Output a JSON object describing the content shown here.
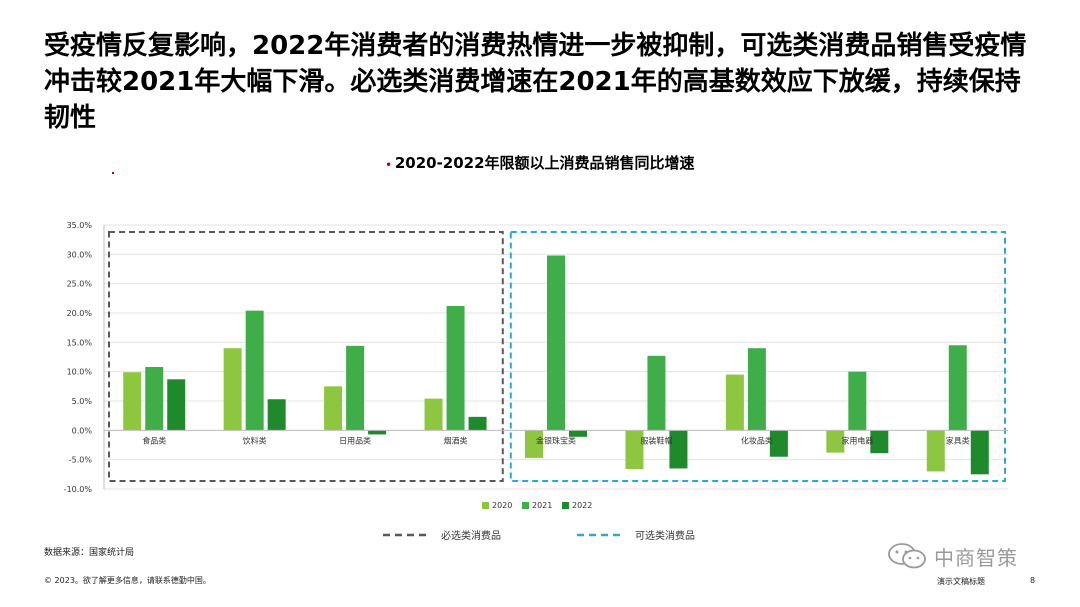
{
  "slide": {
    "title": "受疫情反复影响，2022年消费者的消费热情进一步被抑制，可选类消费品销售受疫情冲击较2021年大幅下滑。必选类消费增速在2021年的高基数效应下放缓，持续保持韧性",
    "source": "数据来源：国家统计局",
    "copyright": "© 2023。欲了解更多信息，请联系德勤中国。",
    "footer_title": "演示文稿标题",
    "page_number": "8",
    "watermark": "中商智策"
  },
  "chart_data": {
    "type": "bar",
    "title": "2020-2022年限额以上消费品销售同比增速",
    "categories": [
      "食品类",
      "饮料类",
      "日用品类",
      "烟酒类",
      "金银珠宝类",
      "服装鞋帽",
      "化妆品类",
      "家用电器",
      "家具类"
    ],
    "series": [
      {
        "name": "2020",
        "color": "#8dc63f",
        "values": [
          9.9,
          14.0,
          7.5,
          5.4,
          -4.7,
          -6.6,
          9.5,
          -3.8,
          -7.0
        ]
      },
      {
        "name": "2021",
        "color": "#3fae49",
        "values": [
          10.8,
          20.4,
          14.4,
          21.2,
          29.8,
          12.7,
          14.0,
          10.0,
          14.5
        ]
      },
      {
        "name": "2022",
        "color": "#1f8a2b",
        "values": [
          8.7,
          5.3,
          -0.7,
          2.3,
          -1.1,
          -6.5,
          -4.5,
          -3.9,
          -7.5
        ]
      }
    ],
    "yticks": [
      "35.0%",
      "30.0%",
      "25.0%",
      "20.0%",
      "15.0%",
      "10.0%",
      "5.0%",
      "0.0%",
      "-5.0%",
      "-10.0%"
    ],
    "ylim": [
      -10,
      35
    ],
    "grid": true,
    "legend_position": "bottom",
    "groups": [
      {
        "label": "必选类消费品",
        "color": "#595959",
        "categories": [
          "食品类",
          "饮料类",
          "日用品类",
          "烟酒类"
        ]
      },
      {
        "label": "可选类消费品",
        "color": "#29a9d6",
        "categories": [
          "金银珠宝类",
          "服装鞋帽",
          "化妆品类",
          "家用电器",
          "家具类"
        ]
      }
    ]
  }
}
